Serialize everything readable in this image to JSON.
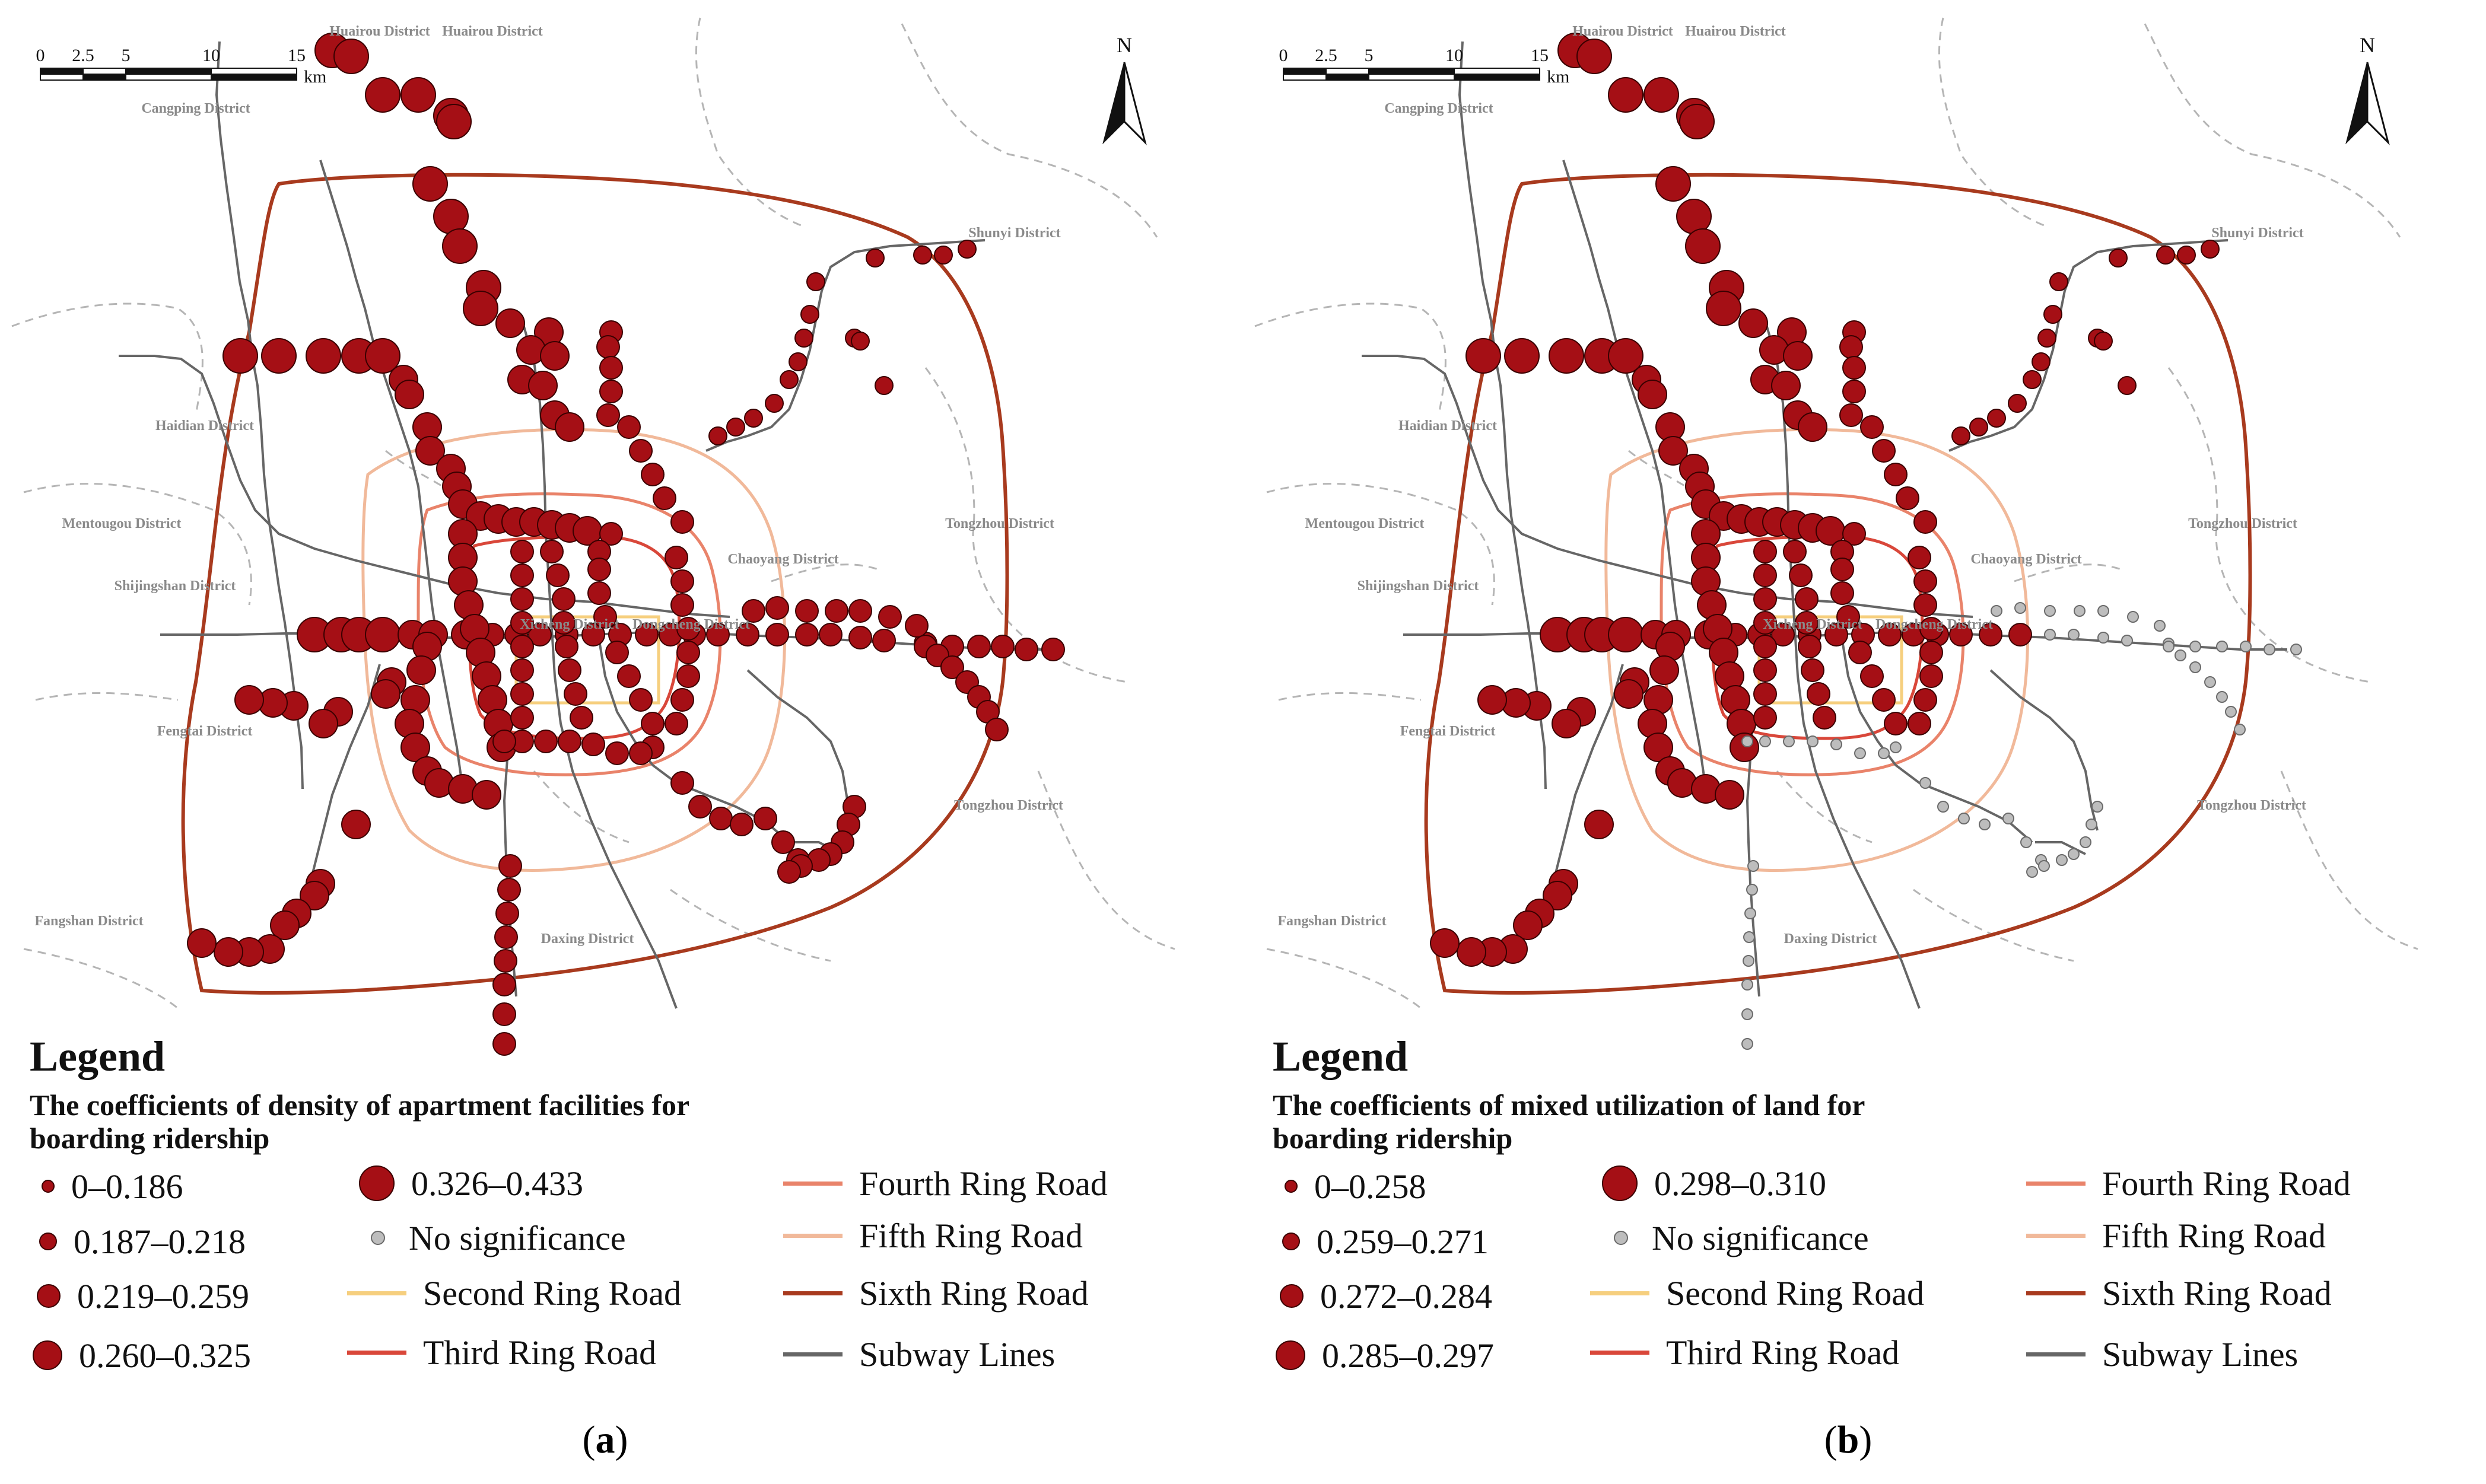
{
  "panels": [
    {
      "id": "a",
      "label_open": "(",
      "label_letter": "a",
      "label_close": ")",
      "legend_title": "Legend",
      "legend_subtitle": "The coefficients of density of apartment facilities for boarding ridership",
      "classes": [
        "0–0.186",
        "0.187–0.218",
        "0.219–0.259",
        "0.260–0.325",
        "0.326–0.433"
      ],
      "nonsig_share": 0.0
    },
    {
      "id": "b",
      "label_open": "(",
      "label_letter": "b",
      "label_close": ")",
      "legend_title": "Legend",
      "legend_subtitle": "The coefficients of mixed utilization of land  for boarding ridership",
      "classes": [
        "0–0.258",
        "0.259–0.271",
        "0.272–0.284",
        "0.285–0.297",
        "0.298–0.310"
      ],
      "nonsig_share": 0.45
    }
  ],
  "legend_common": {
    "no_significance": "No significance",
    "second_ring": "Second Ring Road",
    "third_ring": "Third Ring Road",
    "fourth_ring": "Fourth Ring Road",
    "fifth_ring": "Fifth Ring Road",
    "sixth_ring": "Sixth Ring Road",
    "subway": "Subway Lines"
  },
  "scale_bar": {
    "ticks": [
      "0",
      "2.5",
      "5",
      "10",
      "15"
    ],
    "unit": "km"
  },
  "north_arrow": {
    "label": "N"
  },
  "districts": [
    "Huairou District",
    "Huairou District",
    "Cangping District",
    "Shunyi District",
    "Haidian District",
    "Mentougou District",
    "Tongzhou District",
    "Chaoyang District",
    "Shijingshan District",
    "Xicheng District",
    "Dongcheng District",
    "Fengtai District",
    "Tongzhou District",
    "Fangshan District",
    "Daxing District"
  ],
  "colors": {
    "significant": "#a50f15",
    "nonsignificant": "#bdbdbd",
    "second_ring": "#f6cf7e",
    "third_ring": "#d9473a",
    "fourth_ring": "#e9836a",
    "fifth_ring": "#f1b99a",
    "sixth_ring": "#a83a1e",
    "subway": "#666666",
    "district_boundary": "#b5b5b5"
  }
}
